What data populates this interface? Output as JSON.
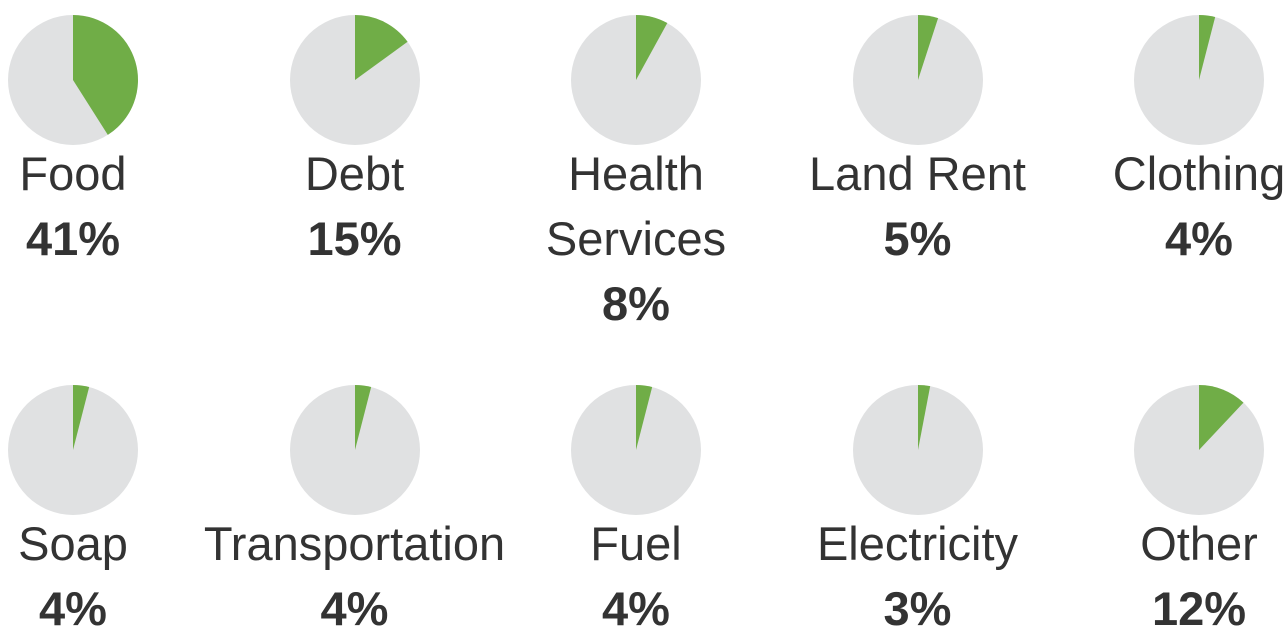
{
  "chart_data": [
    {
      "type": "pie",
      "title": "Food",
      "values": [
        41
      ],
      "value_labels": [
        "41%"
      ],
      "color": "#70ad47"
    },
    {
      "type": "pie",
      "title": "Debt",
      "values": [
        15
      ],
      "value_labels": [
        "15%"
      ],
      "color": "#70ad47"
    },
    {
      "type": "pie",
      "title": "Health Services",
      "values": [
        8
      ],
      "value_labels": [
        "8%"
      ],
      "color": "#70ad47"
    },
    {
      "type": "pie",
      "title": "Land Rent",
      "values": [
        5
      ],
      "value_labels": [
        "5%"
      ],
      "color": "#70ad47"
    },
    {
      "type": "pie",
      "title": "Clothing",
      "values": [
        4
      ],
      "value_labels": [
        "4%"
      ],
      "color": "#70ad47"
    },
    {
      "type": "pie",
      "title": "Soap",
      "values": [
        4
      ],
      "value_labels": [
        "4%"
      ],
      "color": "#70ad47"
    },
    {
      "type": "pie",
      "title": "Transportation",
      "values": [
        4
      ],
      "value_labels": [
        "4%"
      ],
      "color": "#70ad47"
    },
    {
      "type": "pie",
      "title": "Fuel",
      "values": [
        4
      ],
      "value_labels": [
        "4%"
      ],
      "color": "#70ad47"
    },
    {
      "type": "pie",
      "title": "Electricity",
      "values": [
        3
      ],
      "value_labels": [
        "3%"
      ],
      "color": "#70ad47"
    },
    {
      "type": "pie",
      "title": "Other",
      "values": [
        12
      ],
      "value_labels": [
        "12%"
      ],
      "color": "#70ad47"
    }
  ]
}
